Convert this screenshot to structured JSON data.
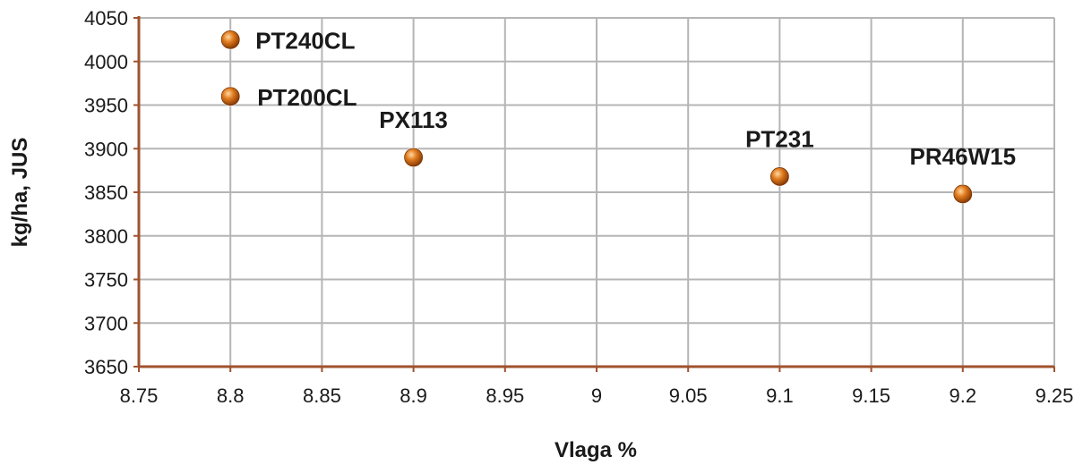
{
  "chart_data": {
    "type": "scatter",
    "xlabel": "Vlaga %",
    "ylabel": "kg/ha, JUS",
    "xlim": [
      8.75,
      9.25
    ],
    "ylim": [
      3650,
      4050
    ],
    "x_ticks": [
      "8.75",
      "8.8",
      "8.85",
      "8.9",
      "8.95",
      "9",
      "9.05",
      "9.1",
      "9.15",
      "9.2",
      "9.25"
    ],
    "y_ticks": [
      "3650",
      "3700",
      "3750",
      "3800",
      "3850",
      "3900",
      "3950",
      "4000",
      "4050"
    ],
    "grid": true,
    "marker_color": "#e07b1f",
    "axis_color": "#a0522d",
    "points": [
      {
        "label": "PT240CL",
        "x": 8.8,
        "y": 4025
      },
      {
        "label": "PT200CL",
        "x": 8.8,
        "y": 3960
      },
      {
        "label": "PX113",
        "x": 8.9,
        "y": 3890
      },
      {
        "label": "PT231",
        "x": 9.1,
        "y": 3868
      },
      {
        "label": "PR46W15",
        "x": 9.2,
        "y": 3848
      }
    ]
  }
}
